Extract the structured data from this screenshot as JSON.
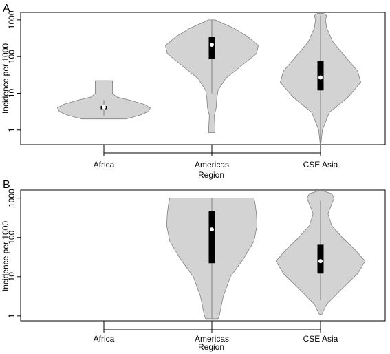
{
  "chart_data": [
    {
      "type": "violin",
      "panel_label": "A",
      "xlabel": "Region",
      "ylabel": "Incidence per 1000",
      "yscale": "log",
      "ylim": [
        0.4,
        1600
      ],
      "yticks": [
        1,
        10,
        100,
        1000
      ],
      "ytick_labels": [
        "1",
        "10",
        "100",
        "1000"
      ],
      "categories": [
        "Africa",
        "Americas",
        "CSE Asia"
      ],
      "violins": [
        {
          "category": "Africa",
          "min": 2.0,
          "max": 22,
          "q1": 3.7,
          "median": 4.2,
          "q3": 4.5,
          "whisker_low": 2.5,
          "whisker_high": 6.5,
          "profile": [
            [
              2.0,
              0.35
            ],
            [
              2.2,
              0.45
            ],
            [
              2.6,
              0.6
            ],
            [
              3.2,
              0.72
            ],
            [
              4.0,
              0.75
            ],
            [
              5.0,
              0.65
            ],
            [
              6.5,
              0.42
            ],
            [
              8.0,
              0.2
            ],
            [
              10,
              0.14
            ],
            [
              15,
              0.14
            ],
            [
              22,
              0.14
            ]
          ]
        },
        {
          "category": "Americas",
          "min": 0.85,
          "max": 1000,
          "q1": 85,
          "median": 210,
          "q3": 340,
          "whisker_low": 10,
          "whisker_high": 1000,
          "profile": [
            [
              0.85,
              0.05
            ],
            [
              1.2,
              0.05
            ],
            [
              2.5,
              0.04
            ],
            [
              4,
              0.07
            ],
            [
              7,
              0.08
            ],
            [
              12,
              0.1
            ],
            [
              25,
              0.22
            ],
            [
              60,
              0.5
            ],
            [
              120,
              0.72
            ],
            [
              200,
              0.75
            ],
            [
              350,
              0.58
            ],
            [
              600,
              0.35
            ],
            [
              1000,
              0.05
            ]
          ]
        },
        {
          "category": "CSE Asia",
          "min": 0.4,
          "max": 1500,
          "q1": 12,
          "median": 27,
          "q3": 75,
          "whisker_low": 0.45,
          "whisker_high": 1300,
          "profile": [
            [
              0.4,
              0.005
            ],
            [
              1,
              0.03
            ],
            [
              3,
              0.14
            ],
            [
              8,
              0.45
            ],
            [
              20,
              0.65
            ],
            [
              40,
              0.6
            ],
            [
              100,
              0.4
            ],
            [
              250,
              0.2
            ],
            [
              600,
              0.1
            ],
            [
              1000,
              0.08
            ],
            [
              1300,
              0.1
            ],
            [
              1500,
              0.05
            ]
          ]
        }
      ]
    },
    {
      "type": "violin",
      "panel_label": "B",
      "xlabel": "Region",
      "ylabel": "Incidence per 1000",
      "yscale": "log",
      "ylim": [
        0.75,
        1600
      ],
      "yticks": [
        1,
        10,
        100,
        1000
      ],
      "ytick_labels": [
        "1",
        "10",
        "100",
        "1000"
      ],
      "categories": [
        "Africa",
        "Americas",
        "CSE Asia"
      ],
      "violins": [
        {
          "category": "Americas",
          "min": 0.85,
          "max": 1000,
          "q1": 22,
          "median": 160,
          "q3": 460,
          "whisker_low": 0.85,
          "whisker_high": 1000,
          "profile": [
            [
              0.85,
              0.1
            ],
            [
              1,
              0.12
            ],
            [
              3,
              0.18
            ],
            [
              10,
              0.3
            ],
            [
              30,
              0.52
            ],
            [
              80,
              0.68
            ],
            [
              200,
              0.73
            ],
            [
              400,
              0.72
            ],
            [
              700,
              0.7
            ],
            [
              1000,
              0.68
            ]
          ]
        },
        {
          "category": "CSE Asia",
          "min": 1.1,
          "max": 1500,
          "q1": 12,
          "median": 25,
          "q3": 65,
          "whisker_low": 2.5,
          "whisker_high": 850,
          "profile": [
            [
              1.1,
              0.02
            ],
            [
              2,
              0.1
            ],
            [
              5,
              0.35
            ],
            [
              12,
              0.6
            ],
            [
              25,
              0.72
            ],
            [
              50,
              0.55
            ],
            [
              100,
              0.35
            ],
            [
              200,
              0.18
            ],
            [
              400,
              0.12
            ],
            [
              700,
              0.18
            ],
            [
              1000,
              0.22
            ],
            [
              1300,
              0.18
            ],
            [
              1500,
              0.05
            ]
          ]
        }
      ]
    }
  ]
}
